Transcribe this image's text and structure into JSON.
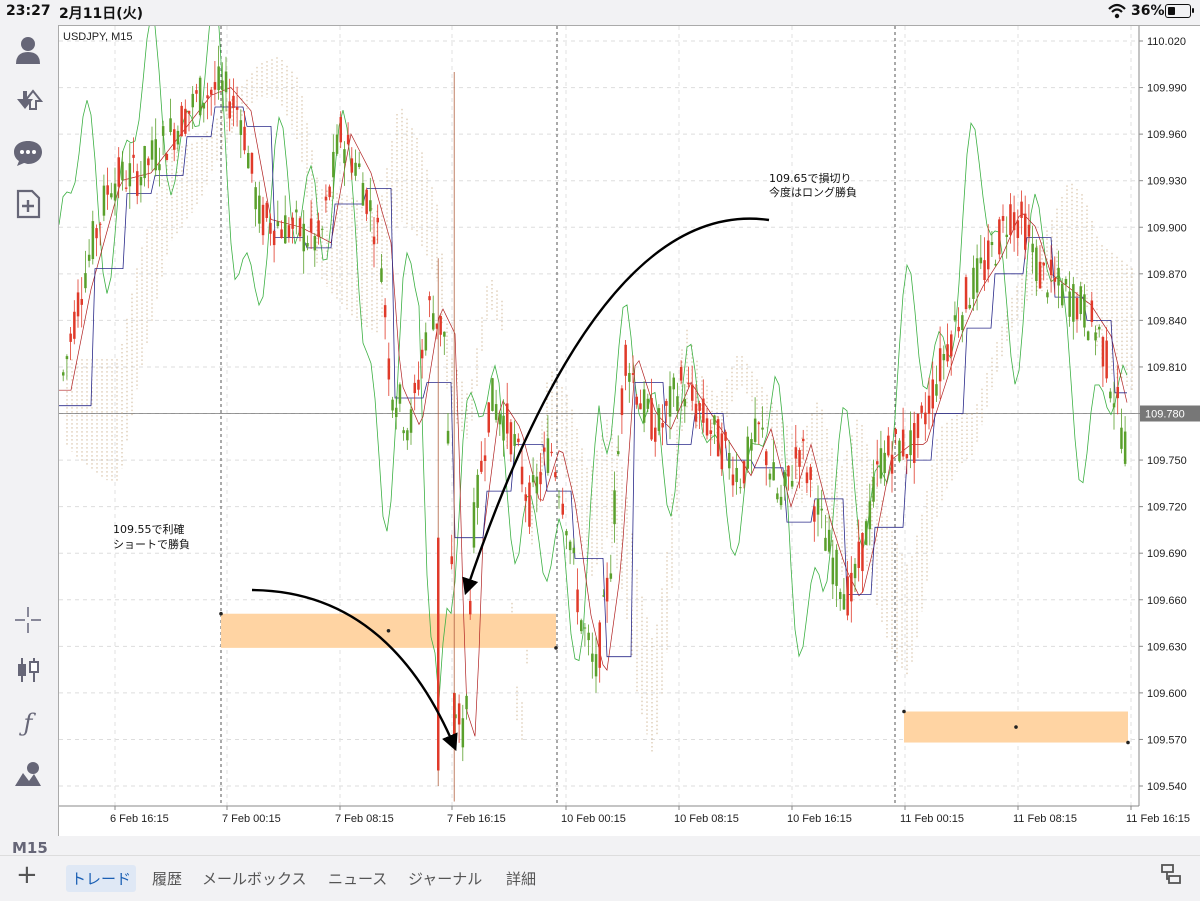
{
  "status": {
    "time": "23:27",
    "date": "2月11日(火)",
    "battery": "36%"
  },
  "sidebar": {
    "timeframe_label": "M15"
  },
  "chart": {
    "symbol_label": "USDJPY, M15",
    "current_price": "109.780",
    "y_ticks": [
      "110.020",
      "109.990",
      "109.960",
      "109.930",
      "109.900",
      "109.870",
      "109.840",
      "109.810",
      "109.780",
      "109.750",
      "109.720",
      "109.690",
      "109.660",
      "109.630",
      "109.600",
      "109.570",
      "109.540"
    ],
    "x_ticks": [
      "6 Feb 16:15",
      "7 Feb 00:15",
      "7 Feb 08:15",
      "7 Feb 16:15",
      "10 Feb 00:15",
      "10 Feb 08:15",
      "10 Feb 16:15",
      "11 Feb 00:15",
      "11 Feb 08:15",
      "11 Feb 16:15"
    ],
    "annotation_1": [
      "109.55で利確",
      "ショートで勝負"
    ],
    "annotation_2": [
      "109.65で損切り",
      "今度はロング勝負"
    ]
  },
  "tabs": [
    "トレード",
    "履歴",
    "メールボックス",
    "ニュース",
    "ジャーナル",
    "詳細"
  ],
  "colors": {
    "bull": "#5aa02c",
    "bear": "#e03a2a",
    "green_line": "#3cb043",
    "navy_line": "#2a2a8a",
    "red_line": "#b02020",
    "cloud": "#c8a880",
    "zone": "#ffd4a3"
  }
}
